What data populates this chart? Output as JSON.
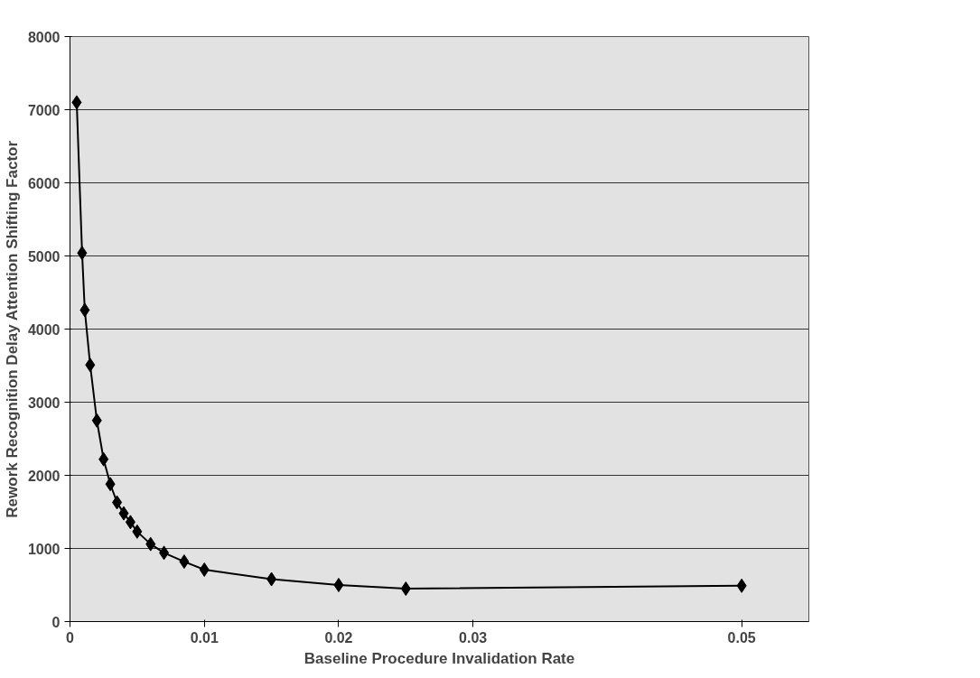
{
  "chart_data": {
    "type": "line",
    "xlabel": "Baseline Procedure Invalidation Rate",
    "ylabel": "Rework Recognition Delay Attention Shifting Factor",
    "x": [
      0.0005,
      0.0009,
      0.0011,
      0.0015,
      0.002,
      0.0025,
      0.003,
      0.0035,
      0.004,
      0.0045,
      0.005,
      0.006,
      0.007,
      0.0085,
      0.01,
      0.015,
      0.02,
      0.025,
      0.05
    ],
    "series": [
      {
        "color": "#000000",
        "values": [
          7100,
          5040,
          4260,
          3510,
          2750,
          2220,
          1880,
          1630,
          1480,
          1360,
          1230,
          1060,
          940,
          820,
          710,
          580,
          500,
          450,
          490
        ]
      }
    ],
    "marker": "diamond",
    "line_style": "solid",
    "grid": "y",
    "xlim": [
      0,
      0.055
    ],
    "xticks": [
      0,
      0.01,
      0.02,
      0.03,
      0.05
    ],
    "ylim": [
      0,
      8000
    ],
    "yticks": [
      0,
      1000,
      2000,
      3000,
      4000,
      5000,
      6000,
      7000,
      8000
    ]
  }
}
